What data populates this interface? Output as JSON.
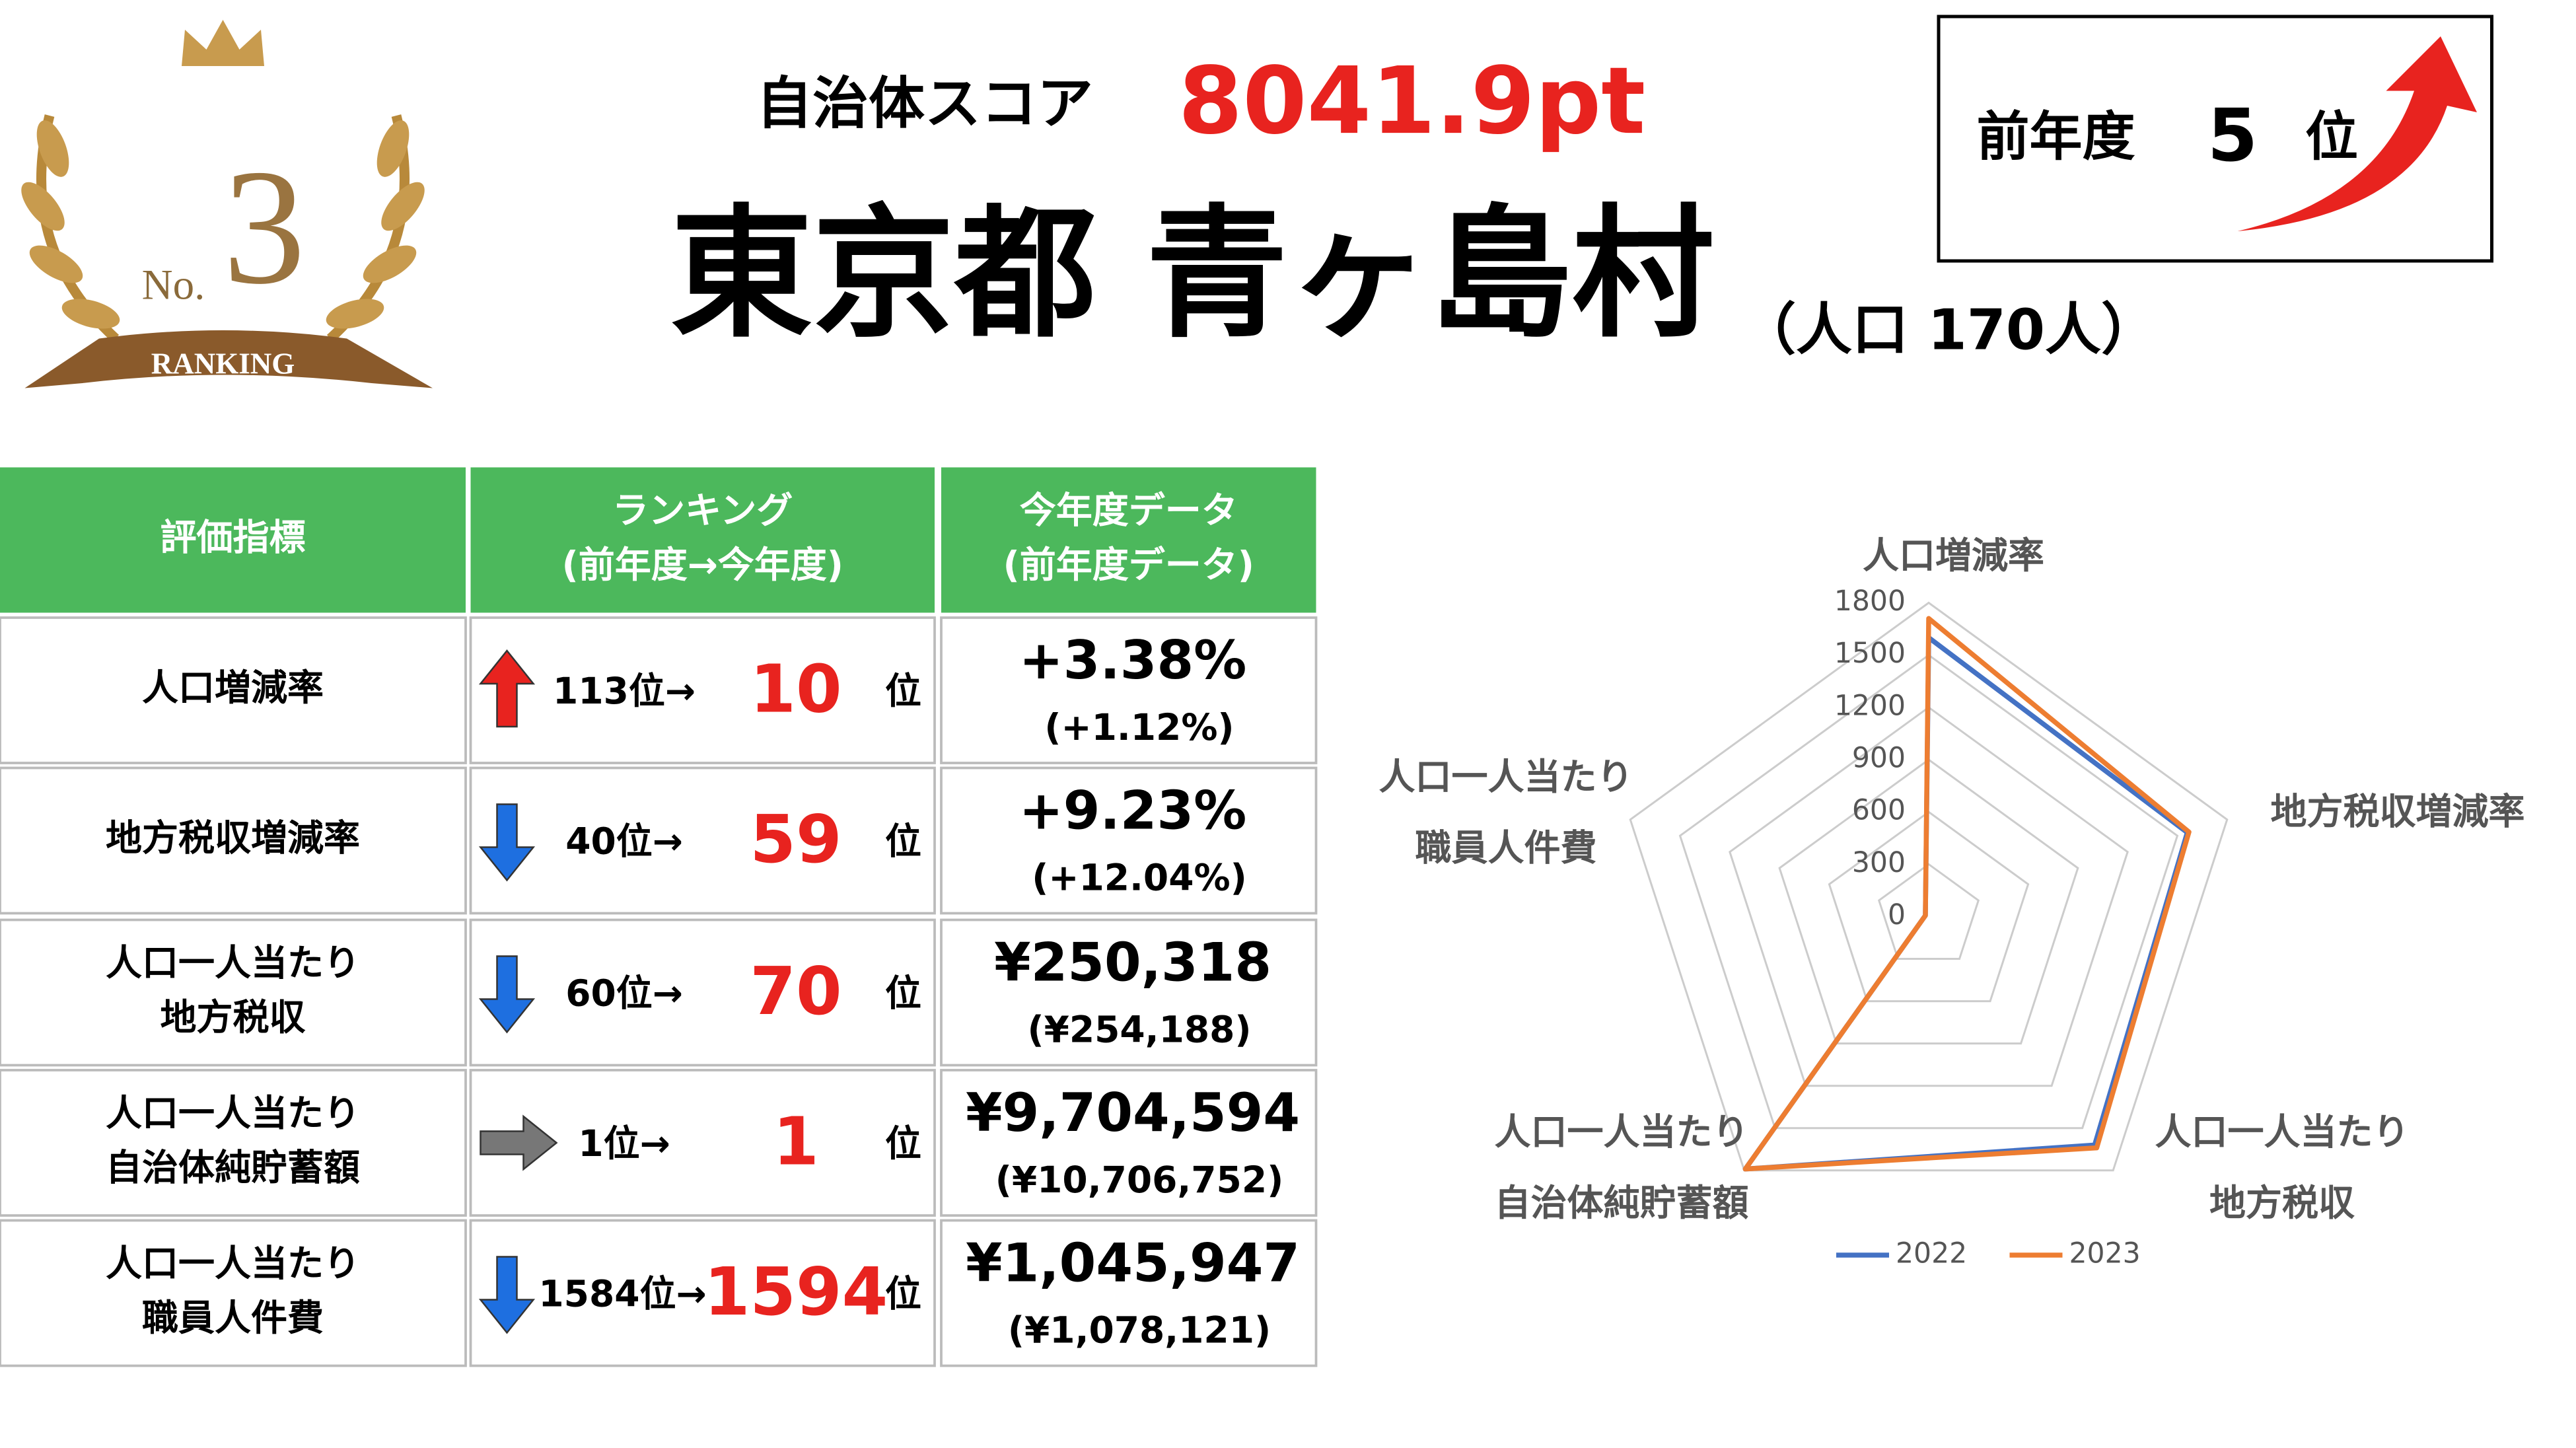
{
  "medal": {
    "no": "No.",
    "rank": "3",
    "ribbon": "RANKING"
  },
  "header": {
    "score_label": "自治体スコア",
    "score": "8041.9pt",
    "name": "東京都 青ヶ島村",
    "population": "（人口 170人）",
    "prev_label": "前年度",
    "prev_rank": "5",
    "prev_unit": "位"
  },
  "table": {
    "headers": [
      [
        "評価指標"
      ],
      [
        "ランキング",
        "(前年度→今年度)"
      ],
      [
        "今年度データ",
        "(前年度データ)"
      ]
    ],
    "rows": [
      {
        "indicator": [
          "人口増減率"
        ],
        "prev": "113位→",
        "rank": "10",
        "unit": "位",
        "value": "+3.38%",
        "prev_value": "(+1.12%)"
      },
      {
        "indicator": [
          "地方税収増減率"
        ],
        "prev": "40位→",
        "rank": "59",
        "unit": "位",
        "value": "+9.23%",
        "prev_value": "(+12.04%)"
      },
      {
        "indicator": [
          "人口一人当たり",
          "地方税収"
        ],
        "prev": "60位→",
        "rank": "70",
        "unit": "位",
        "value": "¥250,318",
        "prev_value": "(¥254,188)"
      },
      {
        "indicator": [
          "人口一人当たり",
          "自治体純貯蓄額"
        ],
        "prev": "1位→",
        "rank": "1",
        "unit": "位",
        "value": "¥9,704,594",
        "prev_value": "(¥10,706,752)"
      },
      {
        "indicator": [
          "人口一人当たり",
          "職員人件費"
        ],
        "prev": "1584位→",
        "rank": "1594",
        "unit": "位",
        "value": "¥1,045,947",
        "prev_value": "(¥1,078,121)"
      }
    ]
  },
  "chart_data": {
    "type": "radar",
    "categories": [
      [
        "人口増減率"
      ],
      [
        "地方税収増減率"
      ],
      [
        "人口一人当たり",
        "地方税収"
      ],
      [
        "人口一人当たり",
        "自治体純貯蓄額"
      ],
      [
        "人口一人当たり",
        "職員人件費"
      ]
    ],
    "series": [
      {
        "name": "2022",
        "color": "#4472c4",
        "values": [
          1600,
          1560,
          1620,
          1790,
          20
        ]
      },
      {
        "name": "2023",
        "color": "#ed7d31",
        "values": [
          1710,
          1570,
          1640,
          1790,
          20
        ]
      }
    ],
    "ylim": [
      0,
      1800
    ],
    "yticks": [
      0,
      300,
      600,
      900,
      1200,
      1500,
      1800
    ],
    "grid": true,
    "legend": "bottom"
  }
}
